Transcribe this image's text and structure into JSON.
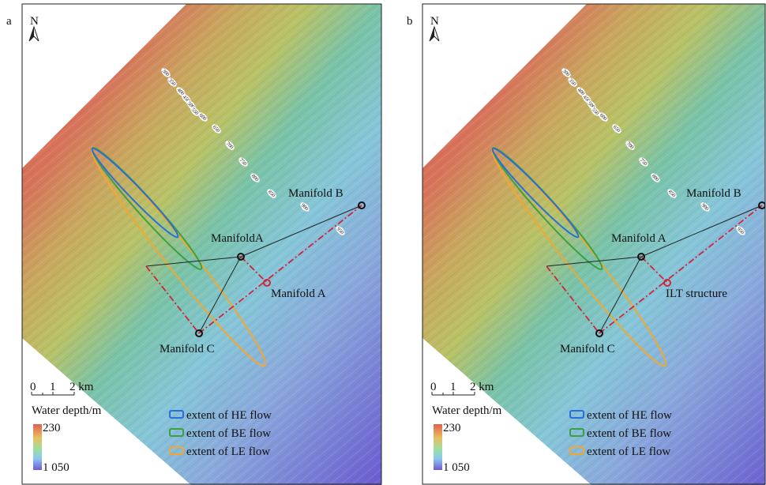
{
  "panels": [
    {
      "label": "a",
      "north": "N",
      "contour_labels": [
        "300",
        "350",
        "400",
        "450",
        "500",
        "550",
        "600",
        "650",
        "700",
        "750",
        "800",
        "850",
        "900",
        "950"
      ],
      "site_labels": [
        "Manifold B",
        "ManifoldA",
        "Manifold A",
        "Manifold C"
      ],
      "scale": [
        "0",
        "1",
        "2 km"
      ],
      "legend": {
        "title": "Water depth/m",
        "max": "230",
        "min": "1 050",
        "items": [
          "extent of HE flow",
          "extent of BE flow",
          "extent of LE flow"
        ]
      }
    },
    {
      "label": "b",
      "north": "N",
      "contour_labels": [
        "300",
        "350",
        "400",
        "450",
        "500",
        "550",
        "600",
        "650",
        "700",
        "750",
        "800",
        "850",
        "900",
        "950"
      ],
      "site_labels": [
        "Manifold B",
        "Manifold A",
        "ILT structure",
        "Manifold C"
      ],
      "scale": [
        "0",
        "1",
        "2 km"
      ],
      "legend": {
        "title": "Water depth/m",
        "max": "230",
        "min": "1 050",
        "items": [
          "extent of HE flow",
          "extent of BE flow",
          "extent of LE flow"
        ]
      }
    }
  ]
}
